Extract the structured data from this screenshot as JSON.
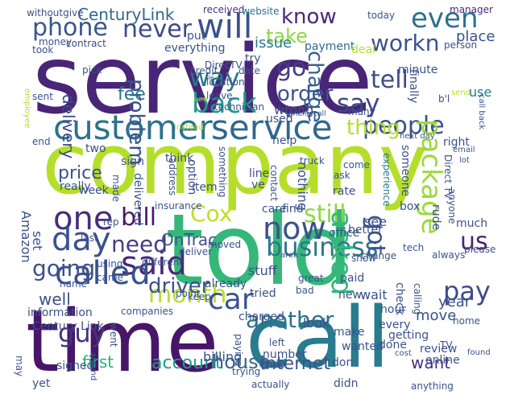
{
  "words": [
    {
      "text": "service",
      "color": "#482576"
    },
    {
      "text": "company",
      "color": "#b5de2b"
    },
    {
      "text": "told",
      "color": "#35b779"
    },
    {
      "text": "time",
      "color": "#481668"
    },
    {
      "text": "call",
      "color": "#287c8e"
    },
    {
      "text": "customer",
      "color": "#2c728e"
    },
    {
      "text": "service",
      "color": "#31678e"
    },
    {
      "text": "will",
      "color": "#3b528b"
    },
    {
      "text": "phone",
      "color": "#39568c"
    },
    {
      "text": "never",
      "color": "#3e4a89"
    },
    {
      "text": "even",
      "color": "#2d708e"
    },
    {
      "text": "say",
      "color": "#3f4788"
    },
    {
      "text": "know",
      "color": "#482878"
    },
    {
      "text": "take",
      "color": "#90d743"
    },
    {
      "text": "workn",
      "color": "#3b528b"
    },
    {
      "text": "go",
      "color": "#433e85"
    },
    {
      "text": "way",
      "color": "#2a768e"
    },
    {
      "text": "tell",
      "color": "#3e4c8a"
    },
    {
      "text": "back",
      "color": "#1f978b"
    },
    {
      "text": "charge",
      "color": "#34618d"
    },
    {
      "text": "people",
      "color": "#3b528b"
    },
    {
      "text": "one",
      "color": "#472d7b"
    },
    {
      "text": "day",
      "color": "#3b528b"
    },
    {
      "text": "bill",
      "color": "#481769"
    },
    {
      "text": "Cox",
      "color": "#c2df23"
    },
    {
      "text": "now",
      "color": "#3b528b"
    },
    {
      "text": "still",
      "color": "#8fd744"
    },
    {
      "text": "package",
      "color": "#9bd93c"
    },
    {
      "text": "said",
      "color": "#482878"
    },
    {
      "text": "need",
      "color": "#433e85"
    },
    {
      "text": "business",
      "color": "#2a788e"
    },
    {
      "text": "called",
      "color": "#3b528b"
    },
    {
      "text": "going",
      "color": "#3b528b"
    },
    {
      "text": "month",
      "color": "#b5de2b"
    },
    {
      "text": "car",
      "color": "#3b528b"
    },
    {
      "text": "asked",
      "color": "#35b779"
    },
    {
      "text": "pay",
      "color": "#3e4a89"
    },
    {
      "text": "us",
      "color": "#482475"
    },
    {
      "text": "got",
      "color": "#3b528b"
    },
    {
      "text": "guy",
      "color": "#46327e"
    },
    {
      "text": "first",
      "color": "#2ab07f"
    },
    {
      "text": "another",
      "color": "#2d708e"
    },
    {
      "text": "account",
      "color": "#1f9a8a"
    },
    {
      "text": "house",
      "color": "#32658e"
    },
    {
      "text": "internet",
      "color": "#3b528b"
    },
    {
      "text": "want",
      "color": "#46307e"
    },
    {
      "text": "driver",
      "color": "#3b528b"
    },
    {
      "text": "thing",
      "color": "#b5de2b"
    },
    {
      "text": "order",
      "color": "#3b528b"
    },
    {
      "text": "problem",
      "color": "#3b528b"
    },
    {
      "text": "fee",
      "color": "#2c728e"
    },
    {
      "text": "price",
      "color": "#3b528b"
    },
    {
      "text": "delivery",
      "color": "#3f4788"
    },
    {
      "text": "CenturyLink",
      "color": "#31688e"
    },
    {
      "text": "withoutgive",
      "color": "#3b528b"
    },
    {
      "text": "received",
      "color": "#46337e"
    },
    {
      "text": "website",
      "color": "#2c728e"
    },
    {
      "text": "manager",
      "color": "#472a7a"
    },
    {
      "text": "today",
      "color": "#3b528b"
    },
    {
      "text": "place",
      "color": "#3b528b"
    },
    {
      "text": "issue",
      "color": "#2a788e"
    },
    {
      "text": "put",
      "color": "#3b528b"
    },
    {
      "text": "everything",
      "color": "#3b528b"
    },
    {
      "text": "payment",
      "color": "#31688e"
    },
    {
      "text": "contract",
      "color": "#3e4989"
    },
    {
      "text": "money",
      "color": "#3b528b"
    },
    {
      "text": "took",
      "color": "#3b528b"
    },
    {
      "text": "deal",
      "color": "#b5de2b"
    },
    {
      "text": "person",
      "color": "#3b528b"
    },
    {
      "text": "credit",
      "color": "#3b528b"
    },
    {
      "text": "date",
      "color": "#3b528b"
    },
    {
      "text": "try",
      "color": "#3b528b"
    },
    {
      "text": "minute",
      "color": "#3b528b"
    },
    {
      "text": "finally",
      "color": "#3b528b"
    },
    {
      "text": "use",
      "color": "#2a788e"
    },
    {
      "text": "b'l",
      "color": "#3b528b"
    },
    {
      "text": "wrong",
      "color": "#3b528b"
    },
    {
      "text": "used",
      "color": "#3b528b"
    },
    {
      "text": "phone call",
      "color": "#3b528b"
    },
    {
      "text": "many",
      "color": "#3b528b"
    },
    {
      "text": "next day",
      "color": "#3b528b"
    },
    {
      "text": "right",
      "color": "#3b528b"
    },
    {
      "text": "email",
      "color": "#3b528b"
    },
    {
      "text": "lot",
      "color": "#3b528b"
    },
    {
      "text": "call back",
      "color": "#3b528b"
    },
    {
      "text": "sent",
      "color": "#3b528b"
    },
    {
      "text": "pick",
      "color": "#3b528b"
    },
    {
      "text": "employee",
      "color": "#b5de2b"
    },
    {
      "text": "end",
      "color": "#3b528b"
    },
    {
      "text": "two",
      "color": "#3b528b"
    },
    {
      "text": "week",
      "color": "#3b528b"
    },
    {
      "text": "sign",
      "color": "#3b528b"
    },
    {
      "text": "think",
      "color": "#3b528b"
    },
    {
      "text": "help",
      "color": "#3b528b"
    },
    {
      "text": "truck",
      "color": "#3b528b"
    },
    {
      "text": "come",
      "color": "#3b528b"
    },
    {
      "text": "ask",
      "color": "#3b528b"
    },
    {
      "text": "rate",
      "color": "#3b528b"
    },
    {
      "text": "box",
      "color": "#3b528b"
    },
    {
      "text": "rude",
      "color": "#3b528b"
    },
    {
      "text": "much",
      "color": "#3b528b"
    },
    {
      "text": "anyone",
      "color": "#3b528b"
    },
    {
      "text": "Direct TV",
      "color": "#3b528b"
    },
    {
      "text": "someone",
      "color": "#3b528b"
    },
    {
      "text": "experience",
      "color": "#2a788e"
    },
    {
      "text": "really",
      "color": "#3b528b"
    },
    {
      "text": "made",
      "color": "#3b528b"
    },
    {
      "text": "delivered",
      "color": "#3b528b"
    },
    {
      "text": "address",
      "color": "#3b528b"
    },
    {
      "text": "option",
      "color": "#3b528b"
    },
    {
      "text": "something",
      "color": "#3b528b"
    },
    {
      "text": "line",
      "color": "#3b528b"
    },
    {
      "text": "ve",
      "color": "#3b528b"
    },
    {
      "text": "contact",
      "color": "#3b528b"
    },
    {
      "text": "nothing",
      "color": "#3b528b"
    },
    {
      "text": "insurance",
      "color": "#3b528b"
    },
    {
      "text": "item",
      "color": "#3b528b"
    },
    {
      "text": "care",
      "color": "#3b528b"
    },
    {
      "text": "find",
      "color": "#3b528b"
    },
    {
      "text": "see",
      "color": "#3b528b"
    },
    {
      "text": "office",
      "color": "#3b528b"
    },
    {
      "text": "better",
      "color": "#3b528b"
    },
    {
      "text": "OnTrac",
      "color": "#3b528b"
    },
    {
      "text": "Amazon",
      "color": "#3b528b"
    },
    {
      "text": "rep",
      "color": "#3b528b"
    },
    {
      "text": "last",
      "color": "#3b528b"
    },
    {
      "text": "set",
      "color": "#3b528b"
    },
    {
      "text": "different",
      "color": "#3b528b"
    },
    {
      "text": "deliver",
      "color": "#3b528b"
    },
    {
      "text": "moved",
      "color": "#3b528b"
    },
    {
      "text": "area",
      "color": "#3b528b"
    },
    {
      "text": "show",
      "color": "#3b528b"
    },
    {
      "text": "change",
      "color": "#3b528b"
    },
    {
      "text": "tech",
      "color": "#3b528b"
    },
    {
      "text": "always",
      "color": "#3b528b"
    },
    {
      "text": "please",
      "color": "#3b528b"
    },
    {
      "text": "using",
      "color": "#3b528b"
    },
    {
      "text": "came",
      "color": "#3b528b"
    },
    {
      "text": "point",
      "color": "#3b528b"
    },
    {
      "text": "already",
      "color": "#3b528b"
    },
    {
      "text": "name",
      "color": "#3b528b"
    },
    {
      "text": "keep",
      "color": "#3b528b"
    },
    {
      "text": "well",
      "color": "#3b528b"
    },
    {
      "text": "stuff",
      "color": "#3b528b"
    },
    {
      "text": "tried",
      "color": "#3b528b"
    },
    {
      "text": "great",
      "color": "#3b528b"
    },
    {
      "text": "bad",
      "color": "#3b528b"
    },
    {
      "text": "paid",
      "color": "#3b528b"
    },
    {
      "text": "wait",
      "color": "#3b528b"
    },
    {
      "text": "new",
      "color": "#3b528b"
    },
    {
      "text": "check",
      "color": "#3b528b"
    },
    {
      "text": "calling",
      "color": "#3b528b"
    },
    {
      "text": "information",
      "color": "#3b528b"
    },
    {
      "text": "Century Link",
      "color": "#3b528b"
    },
    {
      "text": "charged",
      "color": "#3b528b"
    },
    {
      "text": "look",
      "color": "#3b528b"
    },
    {
      "text": "make",
      "color": "#3b528b"
    },
    {
      "text": "every",
      "color": "#3b528b"
    },
    {
      "text": "getting",
      "color": "#3b528b"
    },
    {
      "text": "hour",
      "color": "#3b528b"
    },
    {
      "text": "year",
      "color": "#3b528b"
    },
    {
      "text": "move",
      "color": "#3b528b"
    },
    {
      "text": "home",
      "color": "#3b528b"
    },
    {
      "text": "TV",
      "color": "#3b528b"
    },
    {
      "text": "companies",
      "color": "#3b528b"
    },
    {
      "text": "went",
      "color": "#3b528b"
    },
    {
      "text": "paying",
      "color": "#3b528b"
    },
    {
      "text": "left",
      "color": "#3b528b"
    },
    {
      "text": "number",
      "color": "#3b528b"
    },
    {
      "text": "gave",
      "color": "#3b528b"
    },
    {
      "text": "wanted",
      "color": "#3b528b"
    },
    {
      "text": "don",
      "color": "#3b528b"
    },
    {
      "text": "done",
      "color": "#3b528b"
    },
    {
      "text": "review",
      "color": "#3b528b"
    },
    {
      "text": "online",
      "color": "#3b528b"
    },
    {
      "text": "cost",
      "color": "#3b528b"
    },
    {
      "text": "found",
      "color": "#3b528b"
    },
    {
      "text": "may",
      "color": "#3b528b"
    },
    {
      "text": "signed",
      "color": "#3b528b"
    },
    {
      "text": "around",
      "color": "#3b528b"
    },
    {
      "text": "billing",
      "color": "#3b528b"
    },
    {
      "text": "trying",
      "color": "#3b528b"
    },
    {
      "text": "yet",
      "color": "#3b528b"
    },
    {
      "text": "actually",
      "color": "#3b528b"
    },
    {
      "text": "didn",
      "color": "#3b528b"
    },
    {
      "text": "anything",
      "color": "#3b528b"
    },
    {
      "text": "DirecTV",
      "color": "#3b528b"
    },
    {
      "text": "location",
      "color": "#3b528b"
    },
    {
      "text": "leave",
      "color": "#3b528b"
    },
    {
      "text": "technician",
      "color": "#3b528b"
    },
    {
      "text": "instead",
      "color": "#b5de2b"
    },
    {
      "text": "send",
      "color": "#b5de2b"
    },
    {
      "text": "lie",
      "color": "#3b528b"
    },
    {
      "text": "sure",
      "color": "#b5de2b"
    }
  ]
}
